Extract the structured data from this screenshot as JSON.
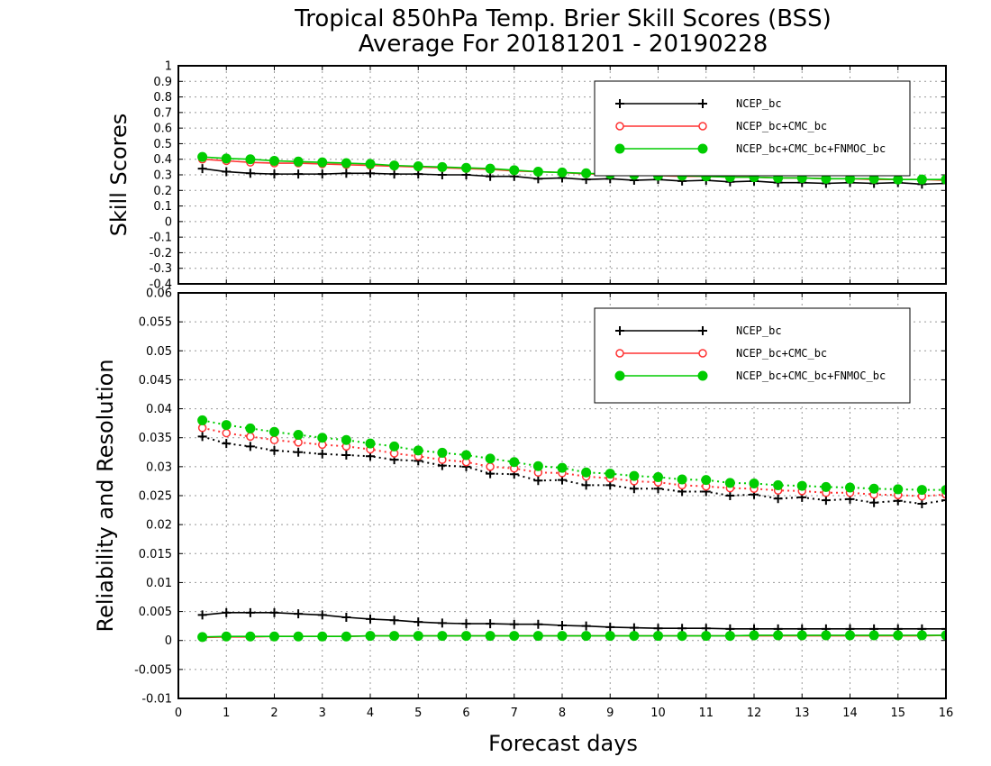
{
  "figure": {
    "title_line1": "Tropical 850hPa Temp. Brier Skill Scores (BSS)",
    "title_line2": "Average For 20181201 - 20190228",
    "xlabel": "Forecast days"
  },
  "colors": {
    "ncep": "#000000",
    "ncep_cmc": "#ff3333",
    "ncep_cmc_fnmoc": "#00cc00"
  },
  "chart_data": [
    {
      "type": "line",
      "panel": "top",
      "ylabel": "Skill Scores",
      "xlim": [
        0,
        16
      ],
      "ylim": [
        -0.4,
        1
      ],
      "xticks": [
        "0",
        "1",
        "2",
        "3",
        "4",
        "5",
        "6",
        "7",
        "8",
        "9",
        "10",
        "11",
        "12",
        "13",
        "14",
        "15",
        "16"
      ],
      "yticks": [
        "-0.4",
        "-0.3",
        "-0.2",
        "-0.1",
        "0",
        "0.1",
        "0.2",
        "0.3",
        "0.4",
        "0.5",
        "0.6",
        "0.7",
        "0.8",
        "0.9",
        "1"
      ],
      "grid": true,
      "legend_position": "top-right",
      "x": [
        0.5,
        1,
        1.5,
        2,
        2.5,
        3,
        3.5,
        4,
        4.5,
        5,
        5.5,
        6,
        6.5,
        7,
        7.5,
        8,
        8.5,
        9,
        9.5,
        10,
        10.5,
        11,
        11.5,
        12,
        12.5,
        13,
        13.5,
        14,
        14.5,
        15,
        15.5,
        16
      ],
      "series": [
        {
          "name": "NCEP_bc",
          "marker": "plus",
          "line": "solid",
          "values": [
            0.34,
            0.32,
            0.31,
            0.305,
            0.305,
            0.305,
            0.31,
            0.31,
            0.305,
            0.305,
            0.3,
            0.3,
            0.29,
            0.29,
            0.275,
            0.28,
            0.27,
            0.275,
            0.265,
            0.27,
            0.26,
            0.265,
            0.255,
            0.26,
            0.25,
            0.25,
            0.245,
            0.25,
            0.245,
            0.25,
            0.24,
            0.245
          ]
        },
        {
          "name": "NCEP_bc+CMC_bc",
          "marker": "open-circle",
          "line": "solid",
          "values": [
            0.4,
            0.39,
            0.38,
            0.375,
            0.375,
            0.37,
            0.365,
            0.36,
            0.355,
            0.35,
            0.345,
            0.34,
            0.335,
            0.325,
            0.32,
            0.315,
            0.305,
            0.305,
            0.3,
            0.295,
            0.29,
            0.29,
            0.285,
            0.285,
            0.28,
            0.28,
            0.275,
            0.275,
            0.27,
            0.27,
            0.27,
            0.265
          ]
        },
        {
          "name": "NCEP_bc+CMC_bc+FNMOC_bc",
          "marker": "filled-circle",
          "line": "solid",
          "values": [
            0.415,
            0.405,
            0.4,
            0.39,
            0.385,
            0.38,
            0.375,
            0.37,
            0.36,
            0.355,
            0.35,
            0.345,
            0.34,
            0.33,
            0.32,
            0.315,
            0.31,
            0.305,
            0.3,
            0.295,
            0.295,
            0.29,
            0.285,
            0.285,
            0.28,
            0.28,
            0.275,
            0.275,
            0.275,
            0.27,
            0.27,
            0.27
          ]
        }
      ]
    },
    {
      "type": "line",
      "panel": "bottom",
      "ylabel": "Reliability and Resolution",
      "xlim": [
        0,
        16
      ],
      "ylim": [
        -0.01,
        0.06
      ],
      "xticks": [
        "0",
        "1",
        "2",
        "3",
        "4",
        "5",
        "6",
        "7",
        "8",
        "9",
        "10",
        "11",
        "12",
        "13",
        "14",
        "15",
        "16"
      ],
      "yticks": [
        "-0.01",
        "-0.005",
        "0",
        "0.005",
        "0.01",
        "0.015",
        "0.02",
        "0.025",
        "0.03",
        "0.035",
        "0.04",
        "0.045",
        "0.05",
        "0.055",
        "0.06"
      ],
      "grid": true,
      "legend_position": "top-right",
      "x": [
        0.5,
        1,
        1.5,
        2,
        2.5,
        3,
        3.5,
        4,
        4.5,
        5,
        5.5,
        6,
        6.5,
        7,
        7.5,
        8,
        8.5,
        9,
        9.5,
        10,
        10.5,
        11,
        11.5,
        12,
        12.5,
        13,
        13.5,
        14,
        14.5,
        15,
        15.5,
        16
      ],
      "series": [
        {
          "name": "NCEP_bc",
          "marker": "plus",
          "line": "dotted",
          "values": [
            0.0352,
            0.034,
            0.0335,
            0.0328,
            0.0325,
            0.0322,
            0.032,
            0.0318,
            0.0312,
            0.031,
            0.0302,
            0.03,
            0.0288,
            0.0287,
            0.0276,
            0.0277,
            0.0268,
            0.0268,
            0.0262,
            0.0262,
            0.0257,
            0.0257,
            0.025,
            0.0252,
            0.0245,
            0.0247,
            0.0242,
            0.0244,
            0.0238,
            0.0241,
            0.0236,
            0.0242
          ]
        },
        {
          "name": "NCEP_bc+CMC_bc",
          "marker": "open-circle",
          "line": "dotted",
          "values": [
            0.0367,
            0.0358,
            0.0352,
            0.0346,
            0.0342,
            0.0338,
            0.0335,
            0.033,
            0.0323,
            0.0318,
            0.0312,
            0.0308,
            0.03,
            0.0297,
            0.029,
            0.0289,
            0.0283,
            0.028,
            0.0275,
            0.0273,
            0.0268,
            0.0266,
            0.0263,
            0.0262,
            0.0259,
            0.0258,
            0.0255,
            0.0255,
            0.0252,
            0.0251,
            0.0249,
            0.0252
          ]
        },
        {
          "name": "NCEP_bc+CMC_bc+FNMOC_bc",
          "marker": "filled-circle",
          "line": "dotted",
          "values": [
            0.038,
            0.0372,
            0.0366,
            0.036,
            0.0355,
            0.035,
            0.0346,
            0.034,
            0.0335,
            0.0328,
            0.0324,
            0.032,
            0.0314,
            0.0308,
            0.0301,
            0.0298,
            0.029,
            0.0288,
            0.0284,
            0.0282,
            0.0278,
            0.0277,
            0.0272,
            0.0271,
            0.0268,
            0.0267,
            0.0265,
            0.0264,
            0.0262,
            0.0261,
            0.026,
            0.026
          ]
        },
        {
          "name": "NCEP_bc",
          "marker": "plus",
          "line": "solid",
          "values": [
            0.0044,
            0.0048,
            0.0048,
            0.0048,
            0.0046,
            0.0044,
            0.004,
            0.0037,
            0.0035,
            0.0032,
            0.003,
            0.0029,
            0.0029,
            0.0028,
            0.0028,
            0.0026,
            0.0025,
            0.0023,
            0.0022,
            0.0021,
            0.0021,
            0.0021,
            0.002,
            0.002,
            0.002,
            0.002,
            0.002,
            0.002,
            0.002,
            0.002,
            0.002,
            0.002
          ]
        },
        {
          "name": "NCEP_bc+CMC_bc",
          "marker": "open-circle",
          "line": "solid",
          "values": [
            0.0005,
            0.0006,
            0.0006,
            0.0007,
            0.0007,
            0.0007,
            0.0007,
            0.0008,
            0.0008,
            0.0008,
            0.0008,
            0.0008,
            0.0008,
            0.0008,
            0.0008,
            0.0008,
            0.0008,
            0.0008,
            0.0008,
            0.0008,
            0.0008,
            0.0008,
            0.0008,
            0.0008,
            0.0008,
            0.0008,
            0.0008,
            0.0008,
            0.0008,
            0.0008,
            0.0008,
            0.0009
          ]
        },
        {
          "name": "NCEP_bc+CMC_bc+FNMOC_bc",
          "marker": "filled-circle",
          "line": "solid",
          "values": [
            0.0006,
            0.0007,
            0.0007,
            0.0007,
            0.0007,
            0.0007,
            0.0007,
            0.0008,
            0.0008,
            0.0008,
            0.0008,
            0.0008,
            0.0008,
            0.0008,
            0.0008,
            0.0008,
            0.0008,
            0.0008,
            0.0008,
            0.0008,
            0.0008,
            0.0008,
            0.0008,
            0.0009,
            0.0009,
            0.0009,
            0.0009,
            0.0009,
            0.0009,
            0.0009,
            0.0009,
            0.0009
          ]
        }
      ]
    }
  ]
}
